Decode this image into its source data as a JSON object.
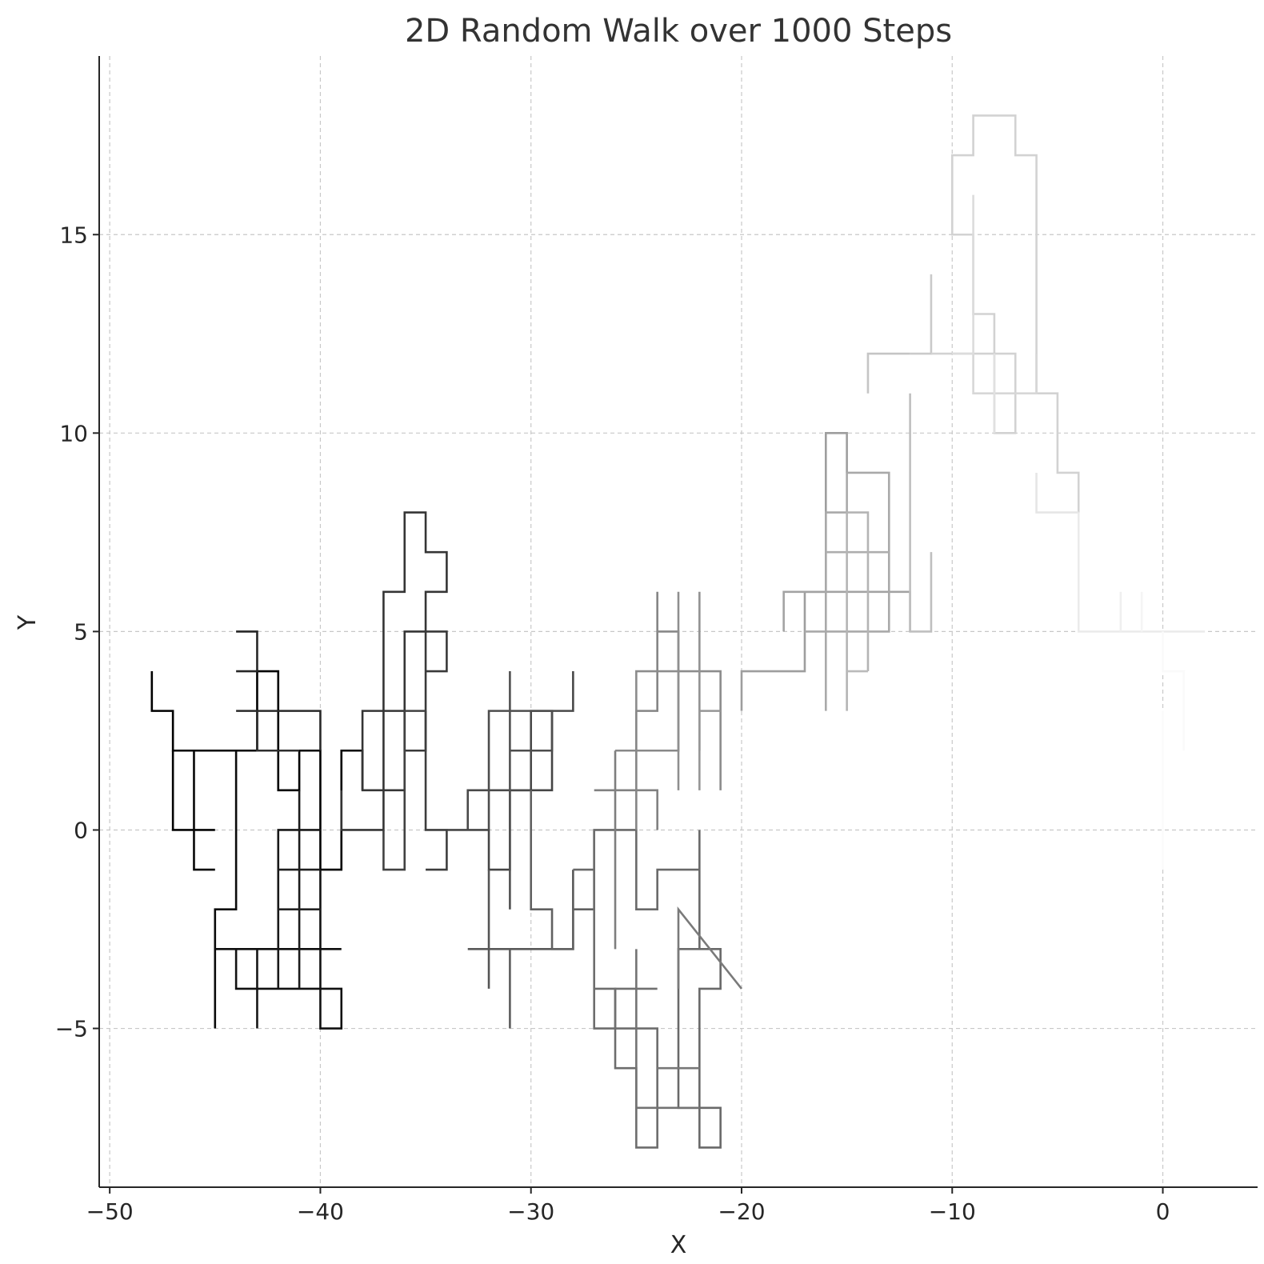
{
  "chart_data": {
    "type": "line",
    "title": "2D Random Walk over 1000 Steps",
    "xlabel": "X",
    "ylabel": "Y",
    "xlim": [
      -50.5,
      4.5
    ],
    "ylim": [
      -9.0,
      19.5
    ],
    "grid": true,
    "grid_style": "dashed",
    "legend": "none",
    "x_ticks": [
      -50,
      -40,
      -30,
      -20,
      -10,
      0
    ],
    "x_tick_labels": [
      "−50",
      "−40",
      "−30",
      "−20",
      "−10",
      "0"
    ],
    "y_ticks": [
      -5,
      0,
      5,
      10,
      15
    ],
    "y_tick_labels": [
      "−5",
      "0",
      "5",
      "10",
      "15"
    ],
    "line_color_gradient": [
      "#000000",
      "#ffffff"
    ],
    "series": [
      {
        "segments": [
          {
            "x": [
              -48,
              -48,
              -47,
              -47,
              -45,
              -45,
              -44,
              -44,
              -43,
              -43,
              -42,
              -42,
              -41,
              -41,
              -40,
              -40,
              -39,
              -39,
              -38,
              -38
            ],
            "y": [
              4,
              3,
              3,
              2,
              2,
              2,
              2,
              2,
              2,
              4,
              4,
              1,
              1,
              2,
              2,
              -1,
              -1,
              2,
              2,
              1
            ]
          },
          {
            "x": [
              -47,
              -47,
              -46,
              -46,
              -45
            ],
            "y": [
              2,
              0,
              0,
              0,
              0
            ]
          },
          {
            "x": [
              -46,
              -46,
              -45
            ],
            "y": [
              2,
              -1,
              -1
            ]
          },
          {
            "x": [
              -44,
              -44,
              -45,
              -45
            ],
            "y": [
              2,
              -2,
              -2,
              -5
            ]
          },
          {
            "x": [
              -45,
              -39
            ],
            "y": [
              -3,
              -3
            ]
          },
          {
            "x": [
              -44,
              -44,
              -39,
              -39,
              -40,
              -40
            ],
            "y": [
              -3,
              -4,
              -4,
              -5,
              -5,
              -1
            ]
          },
          {
            "x": [
              -43,
              -43
            ],
            "y": [
              -3,
              -5
            ]
          },
          {
            "x": [
              -42,
              -42,
              -40
            ],
            "y": [
              -4,
              0,
              0
            ]
          },
          {
            "x": [
              -41,
              -41
            ],
            "y": [
              1,
              -4
            ]
          },
          {
            "x": [
              -42,
              -40
            ],
            "y": [
              -1,
              -1
            ]
          },
          {
            "x": [
              -42,
              -40
            ],
            "y": [
              -2,
              -2
            ]
          },
          {
            "x": [
              -44,
              -43,
              -43,
              -44
            ],
            "y": [
              4,
              4,
              5,
              5
            ]
          },
          {
            "x": [
              -44,
              -40,
              -40
            ],
            "y": [
              3,
              3,
              2
            ]
          },
          {
            "x": [
              -43,
              -43,
              -41
            ],
            "y": [
              3,
              2,
              2
            ]
          }
        ]
      },
      {
        "segments": [
          {
            "x": [
              -39,
              -39,
              -37,
              -37,
              -38,
              -38,
              -36,
              -36,
              -37,
              -37,
              -36,
              -36,
              -35,
              -35,
              -34,
              -34,
              -35,
              -35,
              -36,
              -36
            ],
            "y": [
              1,
              0,
              0,
              1,
              1,
              3,
              3,
              1,
              1,
              6,
              6,
              8,
              8,
              7,
              7,
              6,
              6,
              5,
              5,
              3
            ]
          },
          {
            "x": [
              -36,
              -36,
              -35,
              -35,
              -34,
              -34,
              -35
            ],
            "y": [
              3,
              2,
              2,
              5,
              5,
              4,
              4
            ]
          },
          {
            "x": [
              -35,
              -35,
              -34,
              -34,
              -35
            ],
            "y": [
              3,
              0,
              0,
              -1,
              -1
            ]
          },
          {
            "x": [
              -37,
              -37,
              -36,
              -36,
              -35
            ],
            "y": [
              0,
              -1,
              -1,
              3,
              3
            ]
          },
          {
            "x": [
              -34,
              -32,
              -32,
              -31,
              -31,
              -29,
              -29
            ],
            "y": [
              0,
              0,
              -1,
              -1,
              1,
              1,
              3
            ]
          },
          {
            "x": [
              -33,
              -33,
              -30,
              -30,
              -28,
              -28
            ],
            "y": [
              0,
              1,
              1,
              3,
              3,
              4
            ]
          },
          {
            "x": [
              -32,
              -32,
              -29,
              -29,
              -31
            ],
            "y": [
              0,
              3,
              3,
              2,
              2
            ]
          },
          {
            "x": [
              -31,
              -31
            ],
            "y": [
              4,
              -2
            ]
          },
          {
            "x": [
              -32,
              -32
            ],
            "y": [
              -1,
              -4
            ]
          },
          {
            "x": [
              -33,
              -28,
              -28
            ],
            "y": [
              -3,
              -3,
              -1
            ]
          },
          {
            "x": [
              -31,
              -31
            ],
            "y": [
              -3,
              -5
            ]
          },
          {
            "x": [
              -30,
              -30,
              -29,
              -29,
              -28,
              -28,
              -27,
              -27
            ],
            "y": [
              1,
              -2,
              -2,
              -3,
              -3,
              -2,
              -2,
              -1
            ]
          }
        ]
      },
      {
        "segments": [
          {
            "x": [
              -28,
              -27,
              -27,
              -25,
              -25,
              -24,
              -24,
              -22,
              -22,
              -21,
              -21,
              -22,
              -22,
              -21,
              -21,
              -23,
              -23,
              -22,
              -22
            ],
            "y": [
              -1,
              -1,
              0,
              0,
              -2,
              -2,
              -1,
              -1,
              -3,
              -3,
              -4,
              -4,
              -8,
              -8,
              -7,
              -7,
              -3,
              -3,
              0
            ]
          },
          {
            "x": [
              -27,
              -27,
              -24,
              -24,
              -25,
              -25,
              -26,
              -26,
              -27
            ],
            "y": [
              0,
              -5,
              -5,
              -8,
              -8,
              -6,
              -6,
              -4,
              -4
            ]
          },
          {
            "x": [
              -26,
              -26,
              -24
            ],
            "y": [
              -5,
              -4,
              -4
            ]
          },
          {
            "x": [
              -25,
              -25,
              -22
            ],
            "y": [
              -3,
              -7,
              -7
            ]
          },
          {
            "x": [
              -24,
              -22
            ],
            "y": [
              -6,
              -6
            ]
          },
          {
            "x": [
              -23,
              -23,
              -20
            ],
            "y": [
              -4,
              -2,
              -4
            ]
          },
          {
            "x": [
              -26,
              -26
            ],
            "y": [
              -3,
              2
            ]
          },
          {
            "x": [
              -27,
              -24,
              -24
            ],
            "y": [
              1,
              1,
              0
            ]
          },
          {
            "x": [
              -25,
              -25,
              -24,
              -24
            ],
            "y": [
              0,
              3,
              3,
              6
            ]
          },
          {
            "x": [
              -26,
              -23,
              -23,
              -24
            ],
            "y": [
              2,
              2,
              5,
              5
            ]
          },
          {
            "x": [
              -25,
              -25,
              -21,
              -21
            ],
            "y": [
              3,
              4,
              4,
              1
            ]
          },
          {
            "x": [
              -23,
              -23
            ],
            "y": [
              1,
              6
            ]
          },
          {
            "x": [
              -22,
              -22
            ],
            "y": [
              2,
              6
            ]
          },
          {
            "x": [
              -22,
              -22,
              -21
            ],
            "y": [
              1,
              3,
              3
            ]
          }
        ]
      },
      {
        "segments": [
          {
            "x": [
              -20,
              -20,
              -17,
              -17,
              -16,
              -16,
              -15,
              -15
            ],
            "y": [
              3,
              4,
              4,
              6,
              6,
              10,
              10,
              9
            ]
          },
          {
            "x": [
              -18,
              -18,
              -12,
              -12
            ],
            "y": [
              5,
              6,
              6,
              5
            ]
          },
          {
            "x": [
              -17,
              -13,
              -13,
              -15,
              -15,
              -16,
              -16
            ],
            "y": [
              5,
              5,
              9,
              9,
              8,
              8,
              3
            ]
          },
          {
            "x": [
              -16,
              -13
            ],
            "y": [
              7,
              7
            ]
          },
          {
            "x": [
              -14,
              -14,
              -15,
              -15
            ],
            "y": [
              4,
              8,
              8,
              3
            ]
          },
          {
            "x": [
              -15,
              -14
            ],
            "y": [
              4,
              4
            ]
          },
          {
            "x": [
              -12,
              -12,
              -11,
              -11
            ],
            "y": [
              11,
              5,
              5,
              7
            ]
          },
          {
            "x": [
              -14,
              -14,
              -12
            ],
            "y": [
              11,
              12,
              12
            ]
          },
          {
            "x": [
              -12,
              -11,
              -11
            ],
            "y": [
              12,
              12,
              14
            ]
          }
        ]
      },
      {
        "segments": [
          {
            "x": [
              -11,
              -7,
              -7,
              -8,
              -8,
              -9,
              -9,
              -10,
              -10,
              -9,
              -9,
              -7,
              -7,
              -6,
              -6,
              -5,
              -5,
              -4,
              -4
            ],
            "y": [
              12,
              12,
              10,
              10,
              13,
              13,
              15,
              15,
              17,
              17,
              18,
              18,
              17,
              17,
              11,
              11,
              9,
              9,
              8
            ]
          },
          {
            "x": [
              -9,
              -9,
              -6,
              -6
            ],
            "y": [
              12,
              11,
              11,
              12
            ]
          },
          {
            "x": [
              -10,
              -9,
              -9
            ],
            "y": [
              12,
              12,
              16
            ]
          },
          {
            "x": [
              -8,
              -8
            ],
            "y": [
              10,
              12
            ]
          },
          {
            "x": [
              -6,
              -6,
              -4
            ],
            "y": [
              9,
              8,
              8
            ]
          },
          {
            "x": [
              -4,
              -4,
              2
            ],
            "y": [
              8,
              5,
              5
            ]
          },
          {
            "x": [
              -2,
              -2
            ],
            "y": [
              6,
              5
            ]
          },
          {
            "x": [
              -1,
              -1
            ],
            "y": [
              6,
              5
            ]
          },
          {
            "x": [
              0,
              0,
              1,
              1
            ],
            "y": [
              5,
              4,
              4,
              2
            ]
          },
          {
            "x": [
              0,
              0
            ],
            "y": [
              3,
              -1
            ]
          }
        ]
      }
    ]
  }
}
